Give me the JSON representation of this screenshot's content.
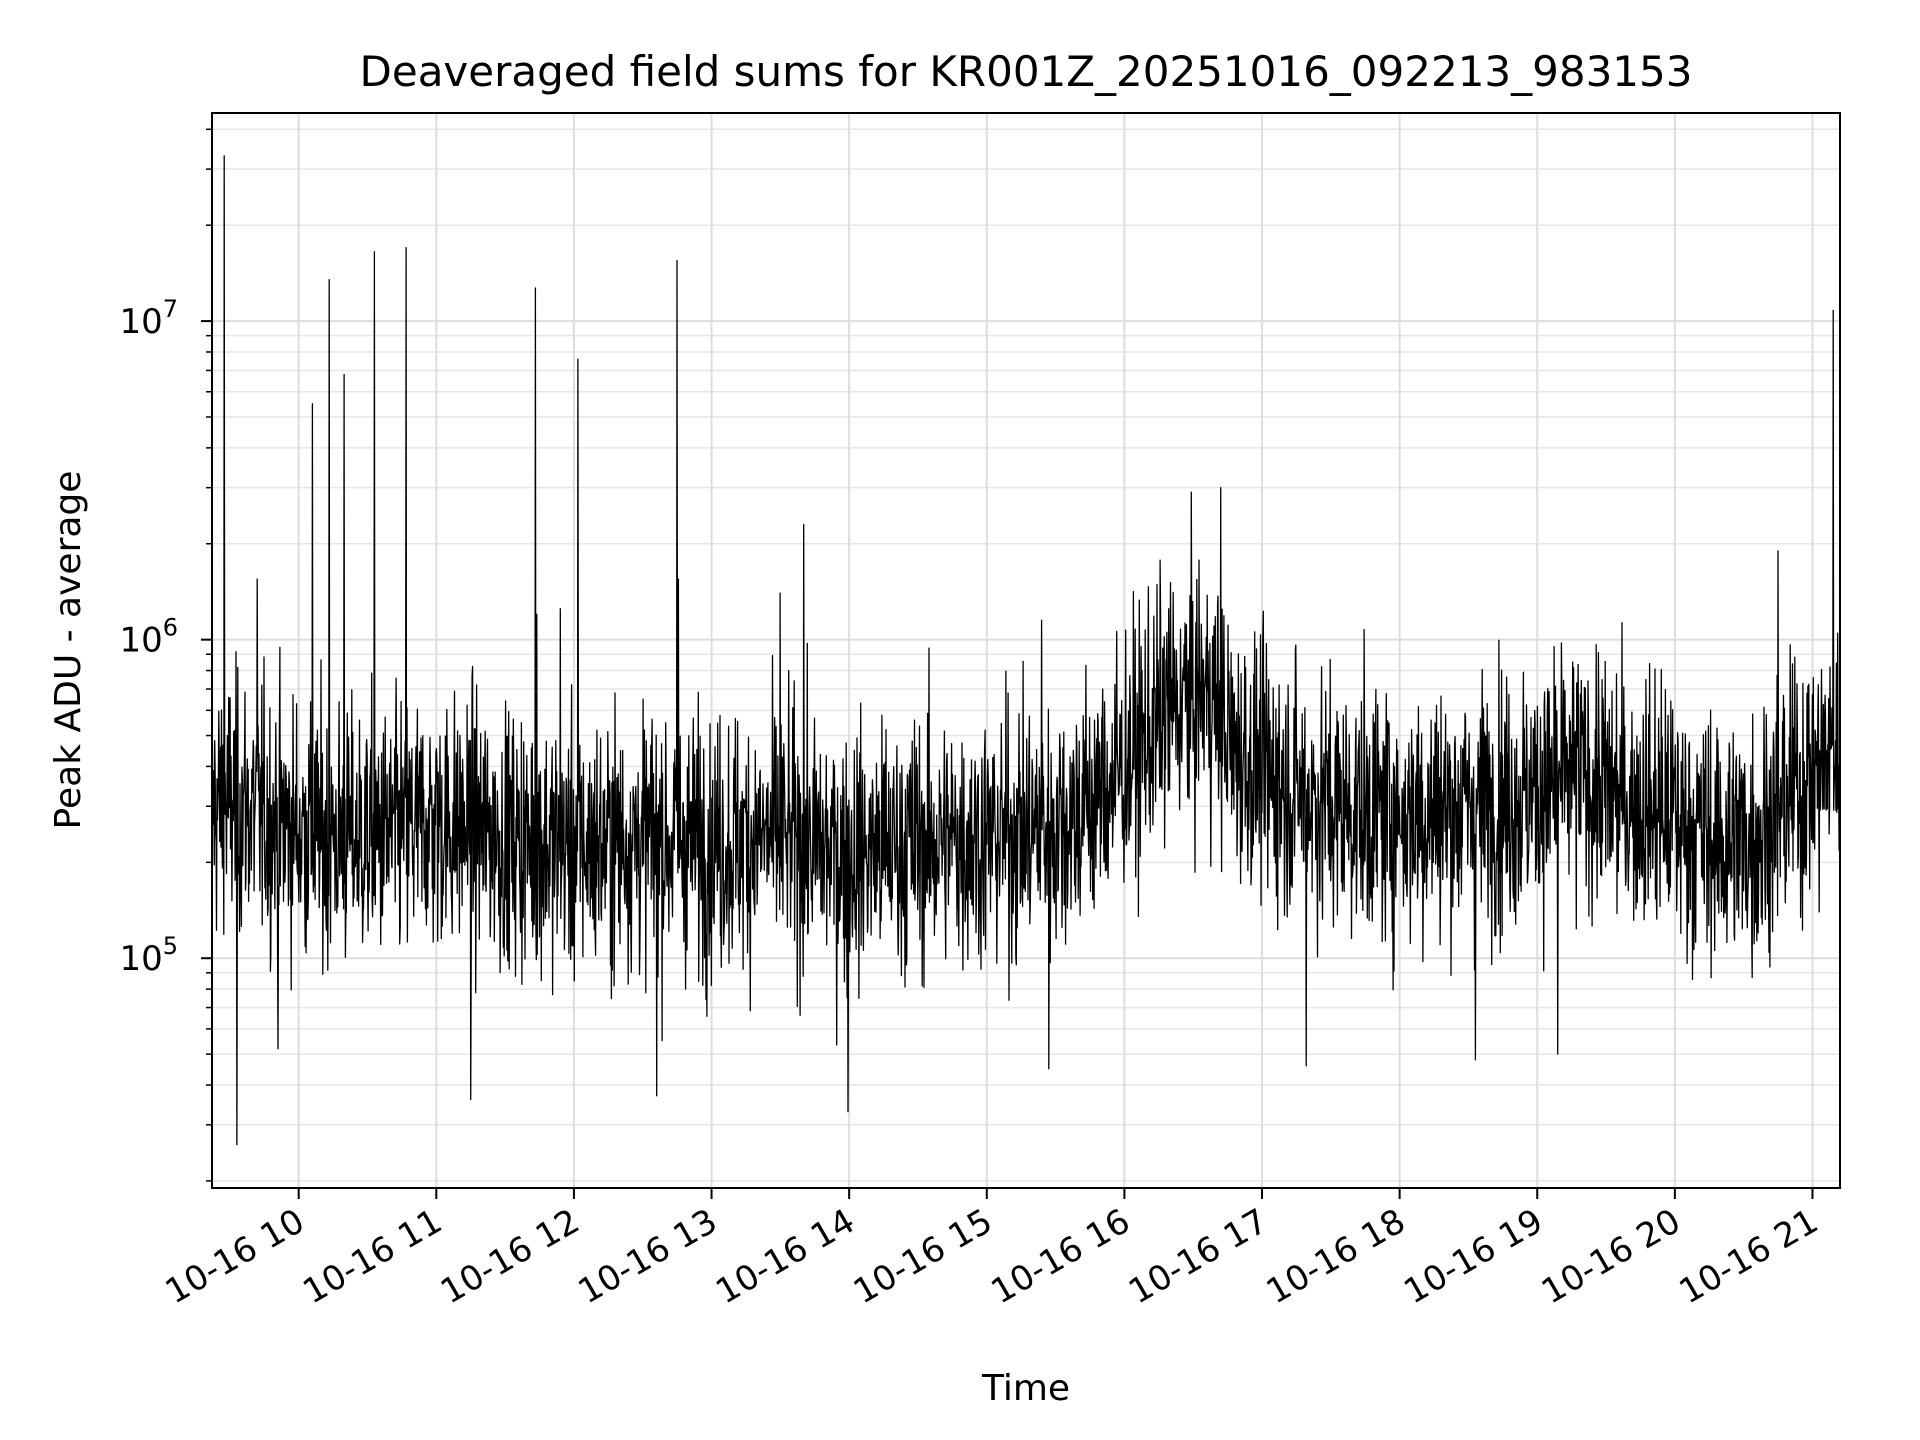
{
  "chart_data": {
    "type": "line",
    "title": "Deaveraged field sums for KR001Z_20251016_092213_983153",
    "xlabel": "Time",
    "ylabel": "Peak ADU - average",
    "yscale": "log",
    "ylim": [
      19000,
      45000000
    ],
    "xlim_hours": [
      9.37,
      21.2
    ],
    "grid": true,
    "legend": "none",
    "line_color": "#000000",
    "x_ticks": [
      {
        "hour": 10,
        "label": "10-16 10"
      },
      {
        "hour": 11,
        "label": "10-16 11"
      },
      {
        "hour": 12,
        "label": "10-16 12"
      },
      {
        "hour": 13,
        "label": "10-16 13"
      },
      {
        "hour": 14,
        "label": "10-16 14"
      },
      {
        "hour": 15,
        "label": "10-16 15"
      },
      {
        "hour": 16,
        "label": "10-16 16"
      },
      {
        "hour": 17,
        "label": "10-16 17"
      },
      {
        "hour": 18,
        "label": "10-16 18"
      },
      {
        "hour": 19,
        "label": "10-16 19"
      },
      {
        "hour": 20,
        "label": "10-16 20"
      },
      {
        "hour": 21,
        "label": "10-16 21"
      }
    ],
    "y_ticks": [
      {
        "value": 100000,
        "base": "10",
        "exp": "5"
      },
      {
        "value": 1000000,
        "base": "10",
        "exp": "6"
      },
      {
        "value": 10000000,
        "base": "10",
        "exp": "7"
      }
    ],
    "series": [
      {
        "name": "deaveraged field sum",
        "baseline_knots": [
          [
            9.37,
            300000
          ],
          [
            9.6,
            300000
          ],
          [
            9.8,
            270000
          ],
          [
            10.2,
            240000
          ],
          [
            10.6,
            240000
          ],
          [
            11.0,
            270000
          ],
          [
            11.5,
            240000
          ],
          [
            12.0,
            220000
          ],
          [
            12.5,
            240000
          ],
          [
            13.0,
            230000
          ],
          [
            13.5,
            240000
          ],
          [
            14.0,
            210000
          ],
          [
            14.5,
            230000
          ],
          [
            15.0,
            240000
          ],
          [
            15.5,
            260000
          ],
          [
            15.8,
            320000
          ],
          [
            16.0,
            400000
          ],
          [
            16.3,
            600000
          ],
          [
            16.6,
            700000
          ],
          [
            16.8,
            450000
          ],
          [
            17.0,
            380000
          ],
          [
            17.5,
            300000
          ],
          [
            18.0,
            280000
          ],
          [
            18.5,
            300000
          ],
          [
            19.0,
            330000
          ],
          [
            19.3,
            380000
          ],
          [
            19.6,
            320000
          ],
          [
            20.0,
            280000
          ],
          [
            20.3,
            230000
          ],
          [
            20.6,
            240000
          ],
          [
            20.9,
            350000
          ],
          [
            21.2,
            450000
          ]
        ],
        "spikes": [
          [
            9.46,
            33000000
          ],
          [
            9.55,
            26000
          ],
          [
            9.7,
            1550000
          ],
          [
            10.1,
            5500000
          ],
          [
            10.22,
            13500000
          ],
          [
            10.33,
            6800000
          ],
          [
            10.55,
            16500000
          ],
          [
            10.78,
            17000000
          ],
          [
            11.72,
            12700000
          ],
          [
            11.73,
            1200000
          ],
          [
            11.9,
            1250000
          ],
          [
            12.03,
            7600000
          ],
          [
            12.75,
            15500000
          ],
          [
            12.76,
            1550000
          ],
          [
            13.5,
            1400000
          ],
          [
            13.67,
            2300000
          ],
          [
            15.4,
            1150000
          ],
          [
            16.7,
            3000000
          ],
          [
            20.75,
            1900000
          ],
          [
            21.15,
            10800000
          ],
          [
            13.99,
            33000
          ],
          [
            11.25,
            36000
          ],
          [
            12.6,
            37000
          ],
          [
            9.85,
            52000
          ],
          [
            15.45,
            45000
          ],
          [
            17.32,
            46000
          ],
          [
            18.55,
            48000
          ],
          [
            19.15,
            50000
          ]
        ]
      }
    ]
  }
}
